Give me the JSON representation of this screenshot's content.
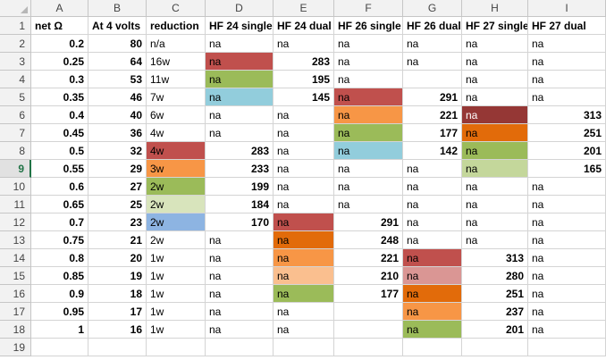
{
  "columns": [
    "A",
    "B",
    "C",
    "D",
    "E",
    "F",
    "G",
    "H",
    "I"
  ],
  "selected_row": 9,
  "header_row": [
    "net Ω",
    "At 4 volts",
    "reduction",
    "HF 24 single",
    "HF 24 dual",
    "HF 26 single",
    "HF 26 dual",
    "HF 27 single",
    "HF 27 dual"
  ],
  "rows": [
    [
      "0.2",
      "80",
      "n/a",
      "na",
      "na",
      "na",
      "na",
      "na",
      "na"
    ],
    [
      "0.25",
      "64",
      "16w",
      "na",
      "283",
      "na",
      "na",
      "na",
      "na"
    ],
    [
      "0.3",
      "53",
      "11w",
      "na",
      "195",
      "na",
      "",
      "na",
      "na"
    ],
    [
      "0.35",
      "46",
      "7w",
      "na",
      "145",
      "na",
      "291",
      "na",
      "na"
    ],
    [
      "0.4",
      "40",
      "6w",
      "na",
      "na",
      "na",
      "221",
      "na",
      "313"
    ],
    [
      "0.45",
      "36",
      "4w",
      "na",
      "na",
      "na",
      "177",
      "na",
      "251"
    ],
    [
      "0.5",
      "32",
      "4w",
      "283",
      "na",
      "na",
      "142",
      "na",
      "201"
    ],
    [
      "0.55",
      "29",
      "3w",
      "233",
      "na",
      "na",
      "na",
      "na",
      "165"
    ],
    [
      "0.6",
      "27",
      "2w",
      "199",
      "na",
      "na",
      "na",
      "na",
      "na"
    ],
    [
      "0.65",
      "25",
      "2w",
      "184",
      "na",
      "na",
      "na",
      "na",
      "na"
    ],
    [
      "0.7",
      "23",
      "2w",
      "170",
      "na",
      "291",
      "na",
      "na",
      "na"
    ],
    [
      "0.75",
      "21",
      "2w",
      "na",
      "na",
      "248",
      "na",
      "na",
      "na"
    ],
    [
      "0.8",
      "20",
      "1w",
      "na",
      "na",
      "221",
      "na",
      "313",
      "na"
    ],
    [
      "0.85",
      "19",
      "1w",
      "na",
      "na",
      "210",
      "na",
      "280",
      "na"
    ],
    [
      "0.9",
      "18",
      "1w",
      "na",
      "na",
      "177",
      "na",
      "251",
      "na"
    ],
    [
      "0.95",
      "17",
      "1w",
      "na",
      "na",
      "",
      "na",
      "237",
      "na"
    ],
    [
      "1",
      "16",
      "1w",
      "na",
      "na",
      "",
      "na",
      "201",
      "na"
    ],
    [
      "",
      "",
      "",
      "",
      "",
      "",
      "",
      "",
      ""
    ]
  ],
  "cell_fills": {
    "3-4": "#c0504d",
    "4-4": "#9bbb59",
    "5-4": "#92cddc",
    "5-6": "#c0504d",
    "6-6": "#f79646",
    "7-6": "#9bbb59",
    "8-6": "#92cddc",
    "6-8": "#953735",
    "7-8": "#e26b0a",
    "8-8": "#9bbb59",
    "9-8": "#c4d79b",
    "8-3": "#c0504d",
    "9-3": "#f79646",
    "10-3": "#9bbb59",
    "11-3": "#d8e4bc",
    "12-3": "#8db4e2",
    "12-5": "#c0504d",
    "13-5": "#e26b0a",
    "14-5": "#f79646",
    "15-5": "#fabf8f",
    "16-5": "#9bbb59",
    "14-7": "#c0504d",
    "15-7": "#da9694",
    "16-7": "#e26b0a",
    "17-7": "#f79646",
    "18-7": "#9bbb59"
  },
  "white_text_cells": [
    "6-8"
  ]
}
